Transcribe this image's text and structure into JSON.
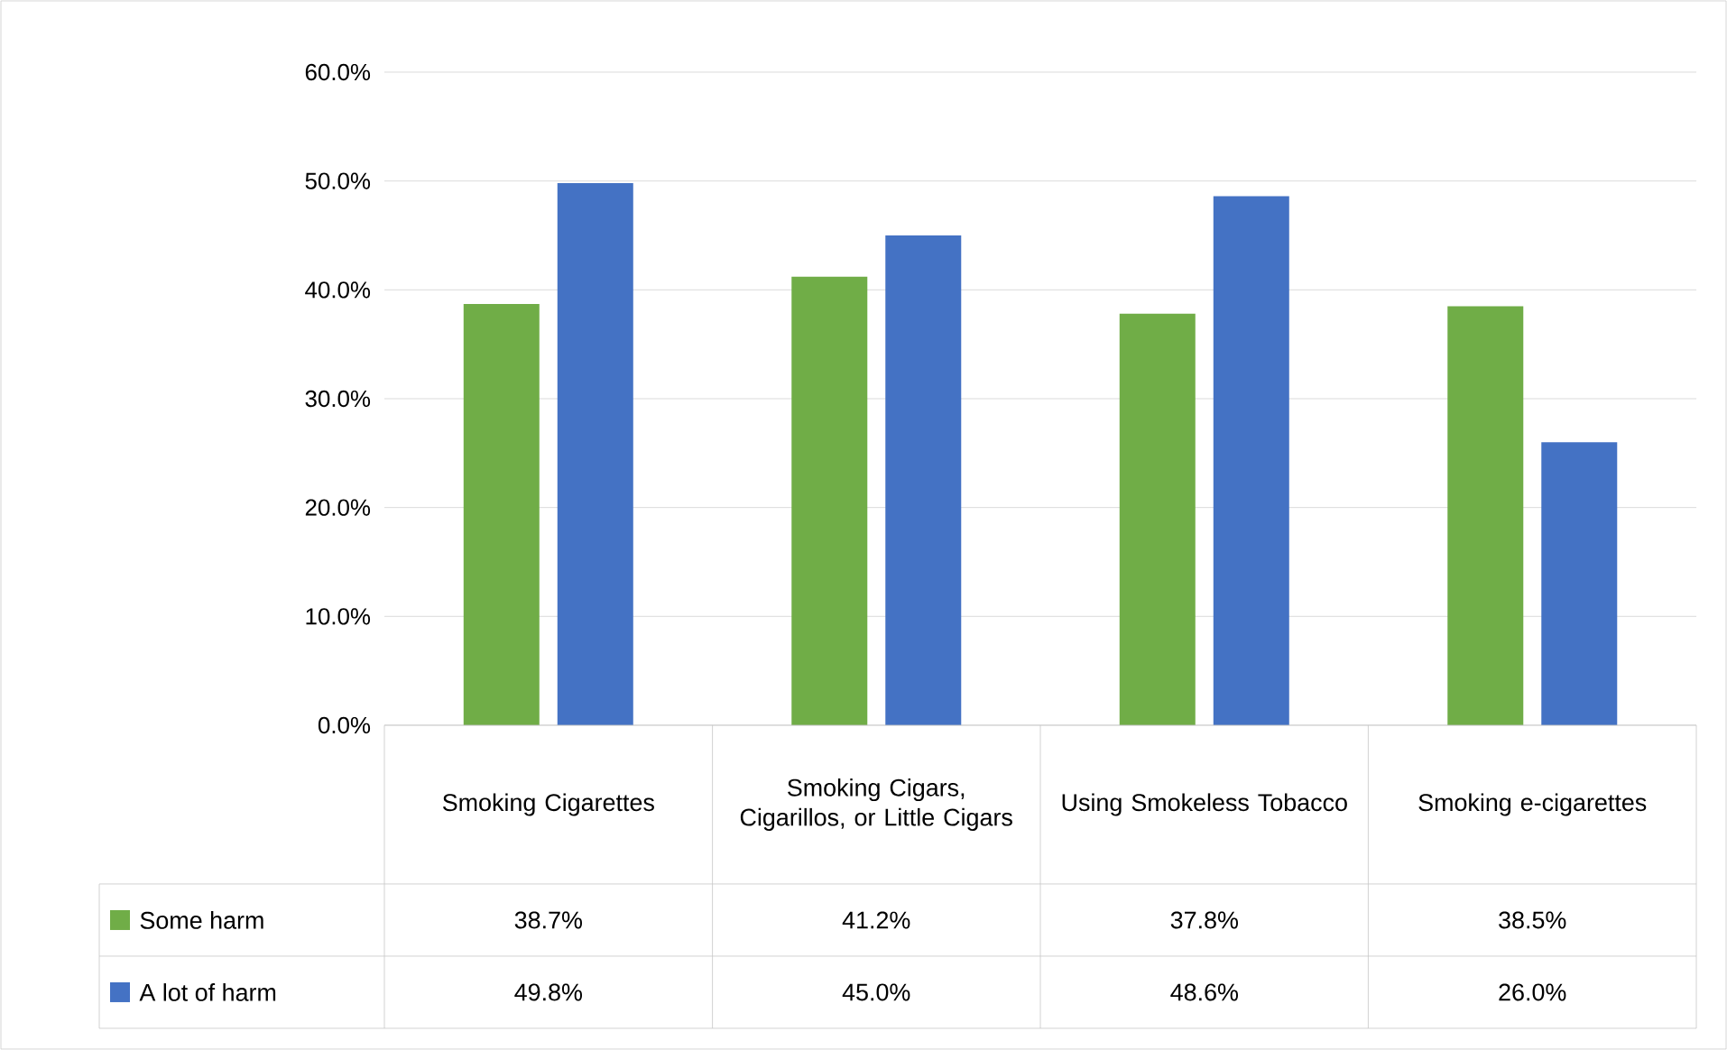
{
  "chart_data": {
    "type": "bar",
    "categories": [
      "Smoking Cigarettes",
      "Smoking Cigars, Cigarillos, or Little Cigars",
      "Using Smokeless Tobacco",
      "Smoking e-cigarettes"
    ],
    "series": [
      {
        "name": "Some harm",
        "color": "#70ad47",
        "values": [
          38.7,
          41.2,
          37.8,
          38.5
        ],
        "value_labels": [
          "38.7%",
          "41.2%",
          "37.8%",
          "38.5%"
        ]
      },
      {
        "name": "A lot of harm",
        "color": "#4472c4",
        "values": [
          49.8,
          45.0,
          48.6,
          26.0
        ],
        "value_labels": [
          "49.8%",
          "45.0%",
          "48.6%",
          "26.0%"
        ]
      }
    ],
    "ylim": [
      0,
      60
    ],
    "yticks": [
      {
        "value": 0,
        "label": "0.0%"
      },
      {
        "value": 10,
        "label": "10.0%"
      },
      {
        "value": 20,
        "label": "20.0%"
      },
      {
        "value": 30,
        "label": "30.0%"
      },
      {
        "value": 40,
        "label": "40.0%"
      },
      {
        "value": 50,
        "label": "50.0%"
      },
      {
        "value": 60,
        "label": "60.0%"
      }
    ],
    "grid": "y",
    "legend": "bottom left"
  }
}
